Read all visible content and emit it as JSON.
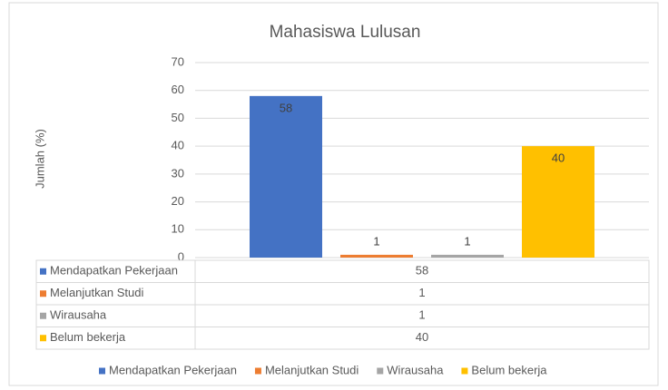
{
  "chart_data": {
    "type": "bar",
    "title": "Mahasiswa Lulusan",
    "y_label": "Jumlah (%)",
    "categories": [
      null
    ],
    "series": [
      {
        "name": "Mendapatkan Pekerjaan",
        "color": "#4472c4",
        "values": [
          58
        ]
      },
      {
        "name": "Melanjutkan Studi",
        "color": "#ed7d31",
        "values": [
          1
        ]
      },
      {
        "name": "Wirausaha",
        "color": "#a5a5a5",
        "values": [
          1
        ]
      },
      {
        "name": "Belum bekerja",
        "color": "#ffc000",
        "values": [
          40
        ]
      }
    ],
    "ylim": [
      0,
      70
    ],
    "yticks": [
      0,
      10,
      20,
      30,
      40,
      50,
      60,
      70
    ],
    "grid": true,
    "data_table": true,
    "legend": "bottom"
  }
}
